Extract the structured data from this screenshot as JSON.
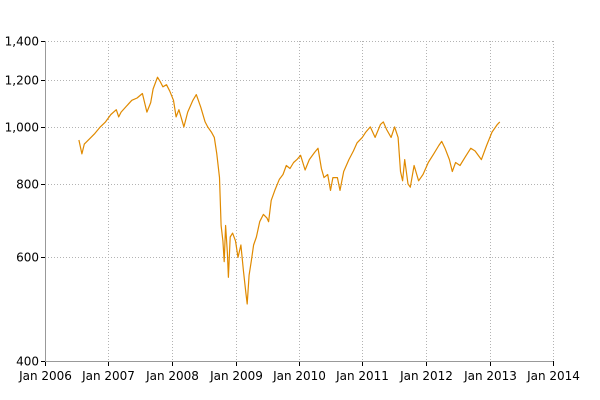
{
  "chart_data": {
    "type": "line",
    "title": "",
    "xlabel": "",
    "ylabel": "",
    "y_scale": "log",
    "ylim": [
      400,
      1400
    ],
    "xlim": [
      "2006-01-01",
      "2014-01-01"
    ],
    "y_ticks": [
      {
        "value": 400,
        "label": "400"
      },
      {
        "value": 600,
        "label": "600"
      },
      {
        "value": 800,
        "label": "800"
      },
      {
        "value": 1000,
        "label": "1,000"
      },
      {
        "value": 1200,
        "label": "1,200"
      },
      {
        "value": 1400,
        "label": "1,400"
      }
    ],
    "x_ticks": [
      {
        "value": "2006-01-01",
        "label": "Jan 2006"
      },
      {
        "value": "2007-01-01",
        "label": "Jan 2007"
      },
      {
        "value": "2008-01-01",
        "label": "Jan 2008"
      },
      {
        "value": "2009-01-01",
        "label": "Jan 2009"
      },
      {
        "value": "2010-01-01",
        "label": "Jan 2010"
      },
      {
        "value": "2011-01-01",
        "label": "Jan 2011"
      },
      {
        "value": "2012-01-01",
        "label": "Jan 2012"
      },
      {
        "value": "2013-01-01",
        "label": "Jan 2013"
      },
      {
        "value": "2014-01-01",
        "label": "Jan 2014"
      }
    ],
    "grid": true,
    "legend": "none",
    "series": [
      {
        "color": "#e08a00",
        "points": [
          [
            "2006-07-15",
            950
          ],
          [
            "2006-08-01",
            900
          ],
          [
            "2006-08-15",
            935
          ],
          [
            "2006-09-15",
            955
          ],
          [
            "2006-10-15",
            975
          ],
          [
            "2006-11-15",
            1000
          ],
          [
            "2006-12-15",
            1020
          ],
          [
            "2007-01-15",
            1050
          ],
          [
            "2007-02-15",
            1070
          ],
          [
            "2007-03-01",
            1040
          ],
          [
            "2007-03-15",
            1060
          ],
          [
            "2007-04-15",
            1085
          ],
          [
            "2007-05-15",
            1110
          ],
          [
            "2007-06-15",
            1120
          ],
          [
            "2007-07-15",
            1140
          ],
          [
            "2007-08-10",
            1060
          ],
          [
            "2007-09-01",
            1100
          ],
          [
            "2007-09-15",
            1160
          ],
          [
            "2007-10-10",
            1215
          ],
          [
            "2007-10-25",
            1195
          ],
          [
            "2007-11-10",
            1170
          ],
          [
            "2007-12-01",
            1180
          ],
          [
            "2007-12-20",
            1150
          ],
          [
            "2008-01-10",
            1110
          ],
          [
            "2008-01-25",
            1040
          ],
          [
            "2008-02-10",
            1070
          ],
          [
            "2008-03-10",
            1000
          ],
          [
            "2008-04-01",
            1060
          ],
          [
            "2008-05-01",
            1110
          ],
          [
            "2008-05-20",
            1135
          ],
          [
            "2008-06-15",
            1080
          ],
          [
            "2008-07-10",
            1020
          ],
          [
            "2008-07-25",
            1000
          ],
          [
            "2008-08-15",
            980
          ],
          [
            "2008-09-01",
            960
          ],
          [
            "2008-09-15",
            900
          ],
          [
            "2008-10-01",
            820
          ],
          [
            "2008-10-10",
            680
          ],
          [
            "2008-10-20",
            640
          ],
          [
            "2008-10-28",
            590
          ],
          [
            "2008-11-05",
            680
          ],
          [
            "2008-11-15",
            610
          ],
          [
            "2008-11-21",
            555
          ],
          [
            "2008-12-01",
            650
          ],
          [
            "2008-12-15",
            660
          ],
          [
            "2009-01-01",
            640
          ],
          [
            "2009-01-15",
            600
          ],
          [
            "2009-02-01",
            630
          ],
          [
            "2009-02-15",
            570
          ],
          [
            "2009-03-02",
            520
          ],
          [
            "2009-03-09",
            500
          ],
          [
            "2009-03-20",
            560
          ],
          [
            "2009-04-01",
            590
          ],
          [
            "2009-04-15",
            630
          ],
          [
            "2009-05-01",
            650
          ],
          [
            "2009-05-20",
            690
          ],
          [
            "2009-06-10",
            710
          ],
          [
            "2009-07-01",
            700
          ],
          [
            "2009-07-10",
            690
          ],
          [
            "2009-07-25",
            750
          ],
          [
            "2009-08-15",
            780
          ],
          [
            "2009-09-10",
            815
          ],
          [
            "2009-10-01",
            830
          ],
          [
            "2009-10-20",
            860
          ],
          [
            "2009-11-10",
            850
          ],
          [
            "2009-12-01",
            870
          ],
          [
            "2009-12-20",
            880
          ],
          [
            "2010-01-10",
            895
          ],
          [
            "2010-02-05",
            845
          ],
          [
            "2010-03-01",
            880
          ],
          [
            "2010-04-01",
            905
          ],
          [
            "2010-04-20",
            920
          ],
          [
            "2010-05-10",
            850
          ],
          [
            "2010-05-25",
            820
          ],
          [
            "2010-06-15",
            830
          ],
          [
            "2010-07-01",
            780
          ],
          [
            "2010-07-15",
            820
          ],
          [
            "2010-08-10",
            820
          ],
          [
            "2010-08-25",
            780
          ],
          [
            "2010-09-15",
            840
          ],
          [
            "2010-10-15",
            880
          ],
          [
            "2010-11-10",
            910
          ],
          [
            "2010-12-01",
            940
          ],
          [
            "2010-12-31",
            960
          ],
          [
            "2011-01-20",
            980
          ],
          [
            "2011-02-15",
            1000
          ],
          [
            "2011-03-15",
            960
          ],
          [
            "2011-04-15",
            1010
          ],
          [
            "2011-05-01",
            1020
          ],
          [
            "2011-05-20",
            990
          ],
          [
            "2011-06-15",
            960
          ],
          [
            "2011-07-05",
            1000
          ],
          [
            "2011-07-25",
            960
          ],
          [
            "2011-08-08",
            840
          ],
          [
            "2011-08-20",
            810
          ],
          [
            "2011-09-01",
            880
          ],
          [
            "2011-09-20",
            800
          ],
          [
            "2011-10-03",
            790
          ],
          [
            "2011-10-25",
            860
          ],
          [
            "2011-11-20",
            810
          ],
          [
            "2011-12-15",
            830
          ],
          [
            "2012-01-15",
            870
          ],
          [
            "2012-02-15",
            900
          ],
          [
            "2012-03-15",
            930
          ],
          [
            "2012-04-01",
            945
          ],
          [
            "2012-04-20",
            920
          ],
          [
            "2012-05-15",
            880
          ],
          [
            "2012-06-01",
            840
          ],
          [
            "2012-06-20",
            870
          ],
          [
            "2012-07-15",
            860
          ],
          [
            "2012-08-15",
            890
          ],
          [
            "2012-09-15",
            920
          ],
          [
            "2012-10-10",
            910
          ],
          [
            "2012-11-15",
            880
          ],
          [
            "2012-12-15",
            930
          ],
          [
            "2013-01-15",
            980
          ],
          [
            "2013-02-15",
            1010
          ],
          [
            "2013-03-01",
            1020
          ]
        ]
      }
    ]
  }
}
